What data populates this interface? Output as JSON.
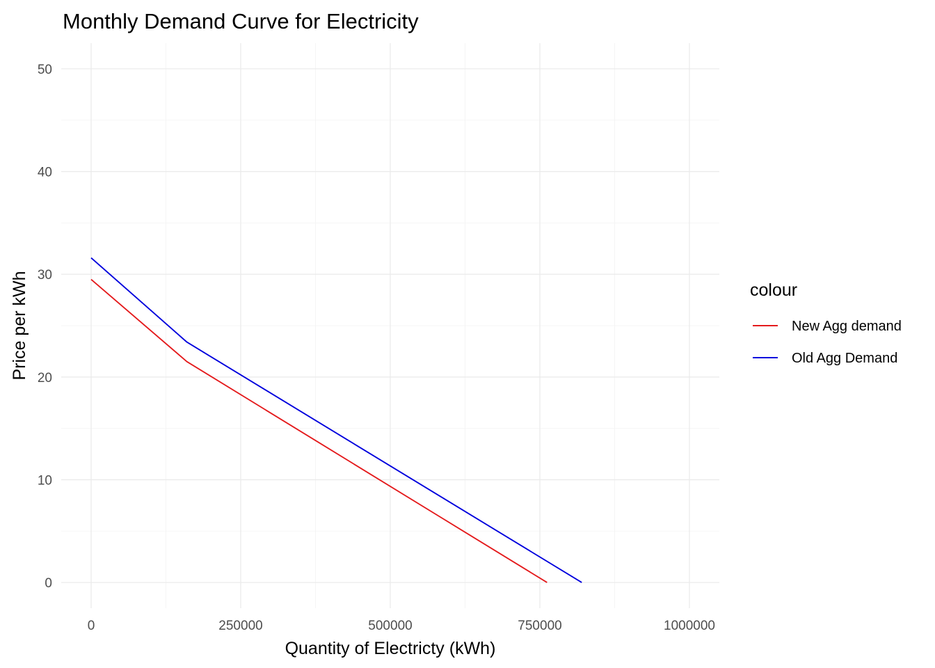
{
  "chart_data": {
    "type": "line",
    "title": "Monthly Demand Curve for Electricity",
    "xlabel": "Quantity of Electricty (kWh)",
    "ylabel": "Price per kWh",
    "xlim": [
      -50000,
      1050000
    ],
    "ylim": [
      -2.5,
      52.5
    ],
    "x_ticks": [
      0,
      250000,
      500000,
      750000,
      1000000
    ],
    "x_tick_labels": [
      "0",
      "250000",
      "500000",
      "750000",
      "1000000"
    ],
    "y_ticks": [
      0,
      10,
      20,
      30,
      40,
      50
    ],
    "y_tick_labels": [
      "0",
      "10",
      "20",
      "30",
      "40",
      "50"
    ],
    "grid": true,
    "legend": {
      "title": "colour",
      "position": "right"
    },
    "series": [
      {
        "name": "New Agg demand",
        "color": "#e41a1c",
        "points": [
          [
            0,
            29.5
          ],
          [
            160000,
            21.5
          ],
          [
            762000,
            0
          ]
        ]
      },
      {
        "name": "Old Agg Demand",
        "color": "#0000dd",
        "points": [
          [
            0,
            31.6
          ],
          [
            160000,
            23.4
          ],
          [
            820000,
            0
          ]
        ]
      }
    ]
  }
}
